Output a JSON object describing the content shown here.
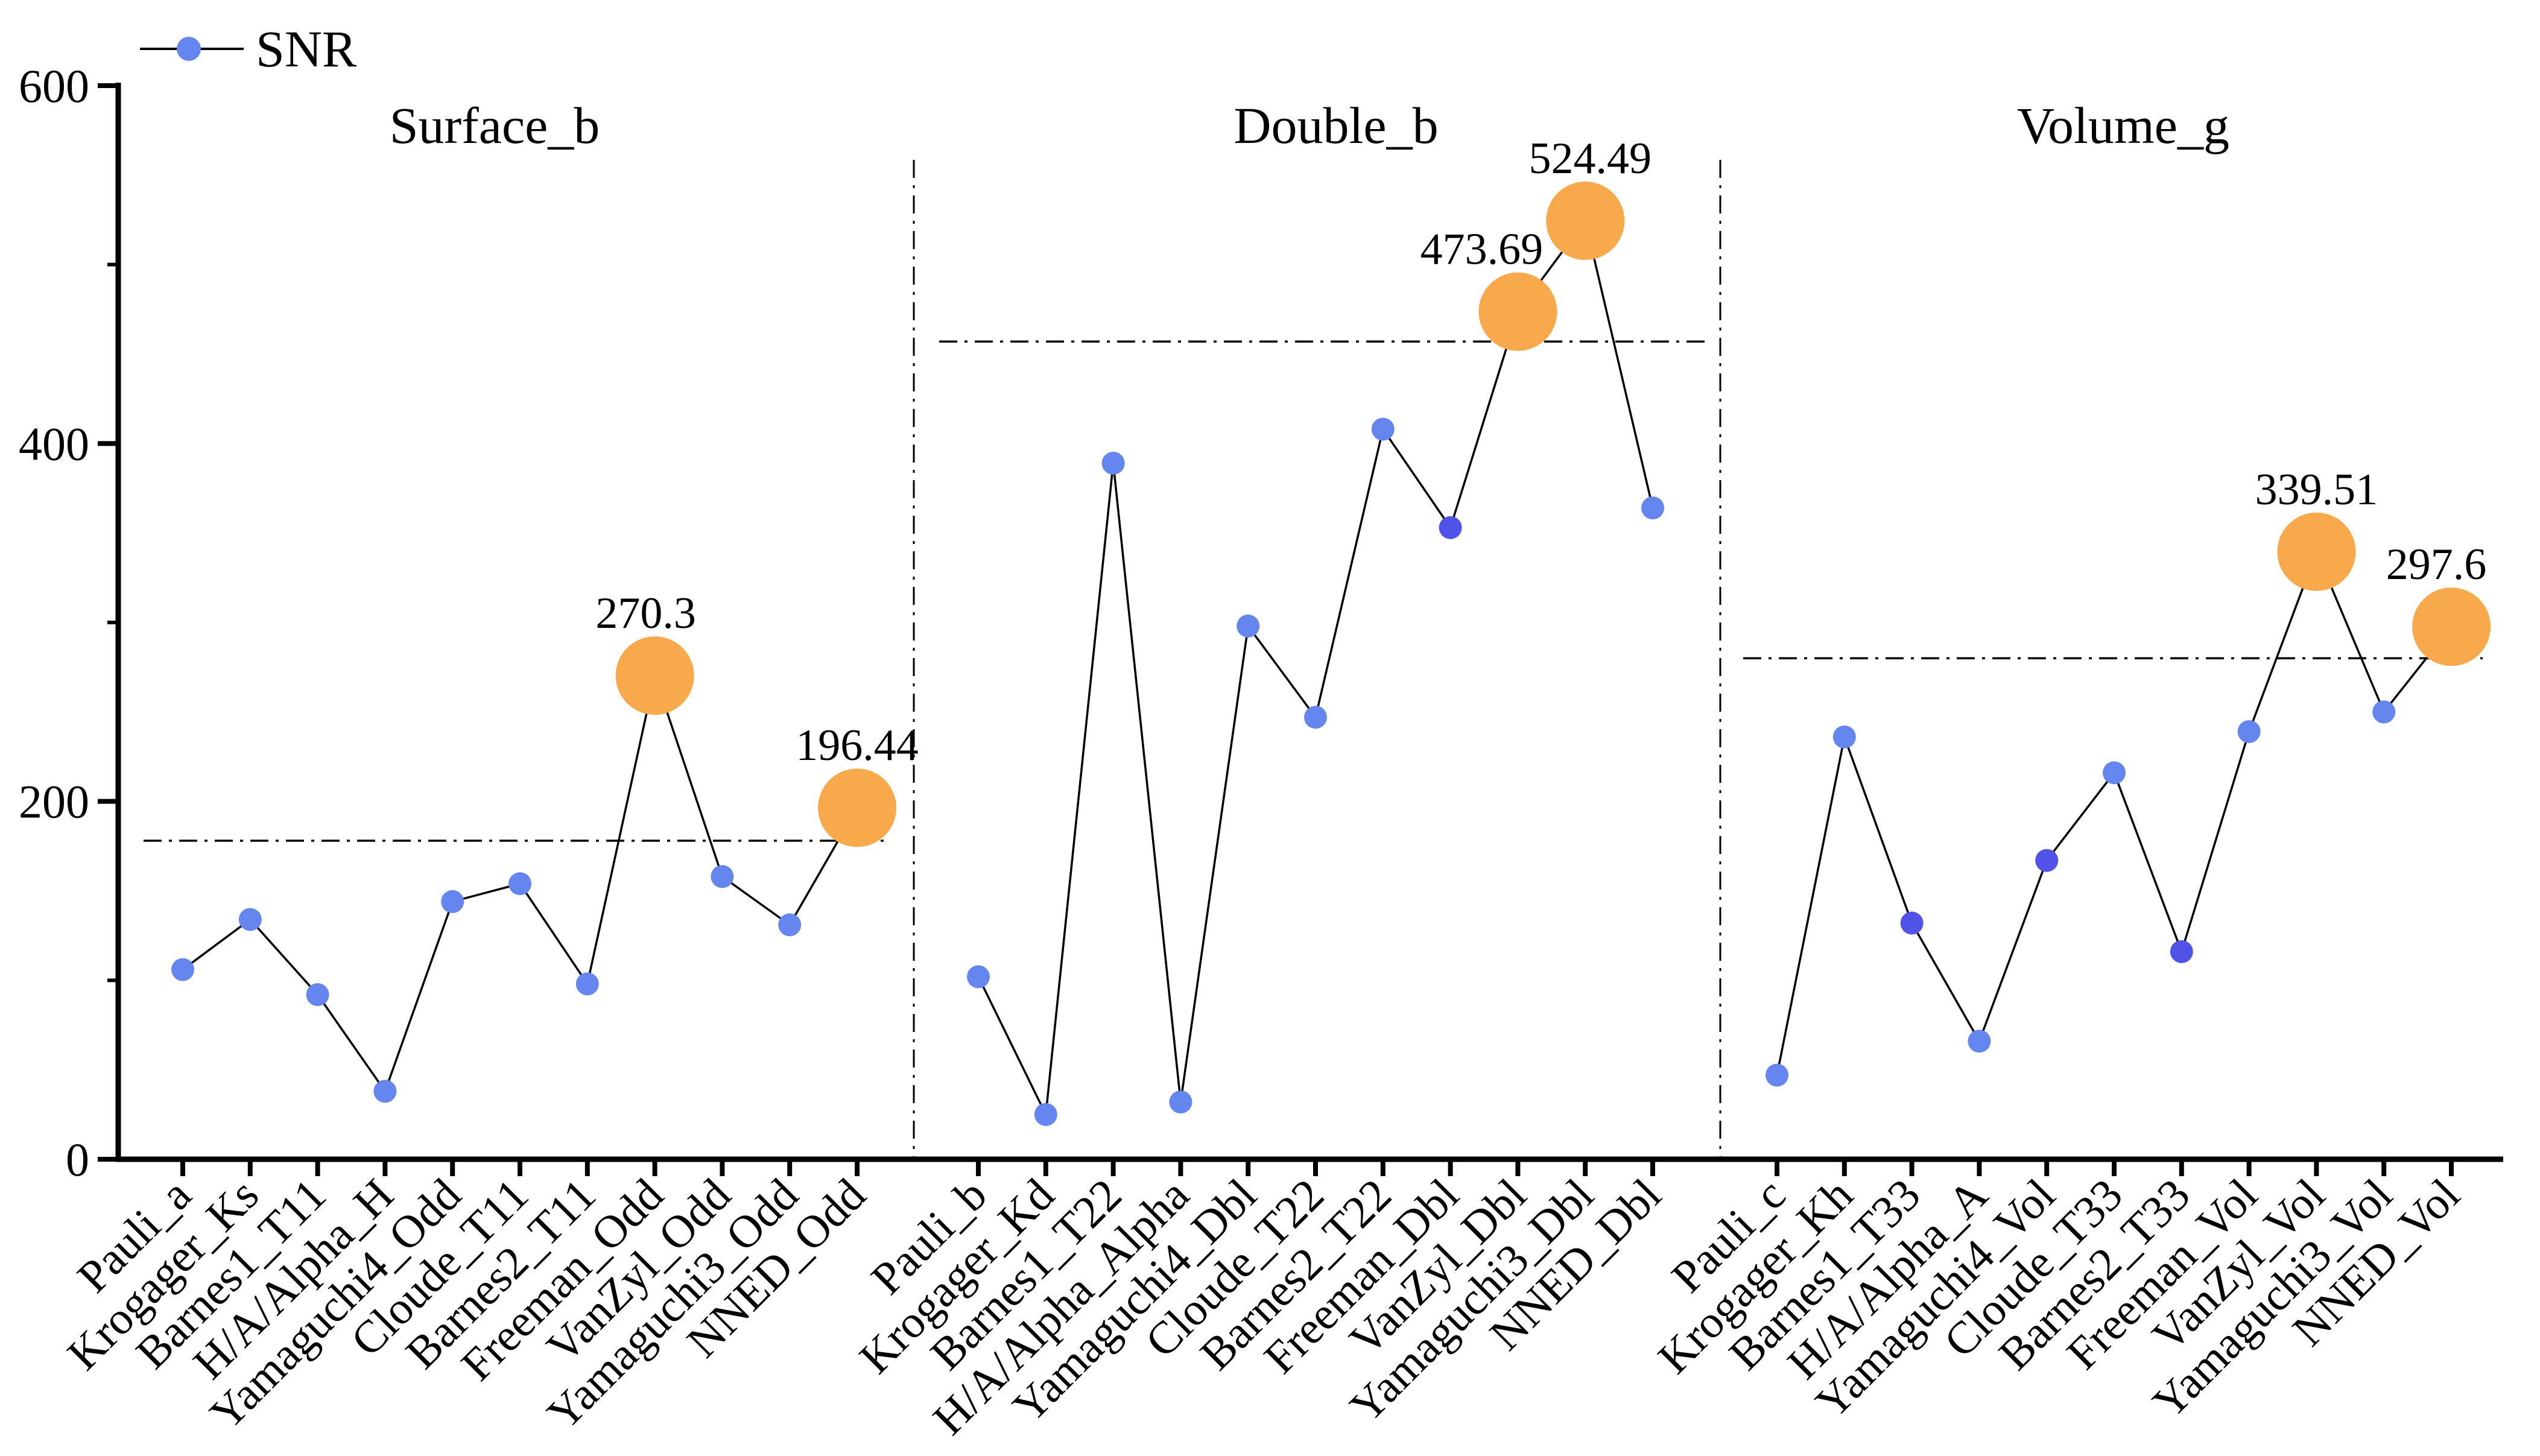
{
  "page": {
    "background": "#ffffff"
  },
  "legend": {
    "label": "SNR"
  },
  "colors": {
    "point_blue": "#6486ee",
    "point_blue_dark": "#5153e8",
    "highlight_orange": "#f8a94c",
    "line_black": "#000000",
    "background": "#ffffff"
  },
  "chart_data": {
    "type": "line",
    "series_name": "SNR",
    "marker": "circle",
    "grid": false,
    "legend_position": "top-left",
    "ylim": [
      0,
      600
    ],
    "yticks_major": [
      0,
      200,
      400,
      600
    ],
    "yticks_minor": [
      100,
      300,
      500
    ],
    "panels": [
      {
        "title": "Surface_b",
        "reference_line": 178,
        "categories": [
          "Pauli_a",
          "Krogager_Ks",
          "Barnes1_T11",
          "H/A/Alpha_H",
          "Yamaguchi4_Odd",
          "Cloude_T11",
          "Barnes2_T11",
          "Freeman_Odd",
          "VanZyl_Odd",
          "Yamaguchi3_Odd",
          "NNED_Odd"
        ],
        "values": [
          106,
          134,
          92,
          38,
          144,
          154,
          98,
          270.3,
          158,
          131,
          196.44
        ],
        "dark_point_indices": [],
        "highlighted": [
          {
            "index": 7,
            "label": "270.3"
          },
          {
            "index": 10,
            "label": "196.44"
          }
        ]
      },
      {
        "title": "Double_b",
        "reference_line": 457,
        "categories": [
          "Pauli_b",
          "Krogager_Kd",
          "Barnes1_T22",
          "H/A/Alpha_Alpha",
          "Yamaguchi4_Dbl",
          "Cloude_T22",
          "Barnes2_T22",
          "Freeman_Dbl",
          "VanZyl_Dbl",
          "Yamaguchi3_Dbl",
          "NNED_Dbl"
        ],
        "values": [
          102,
          25,
          389,
          32,
          298,
          247,
          408,
          353,
          473.69,
          524.49,
          364
        ],
        "dark_point_indices": [
          7
        ],
        "highlighted": [
          {
            "index": 8,
            "label": "473.69"
          },
          {
            "index": 9,
            "label": "524.49"
          }
        ]
      },
      {
        "title": "Volume_g",
        "reference_line": 280,
        "categories": [
          "Pauli_c",
          "Krogager_Kh",
          "Barnes1_T33",
          "H/A/Alpha_A",
          "Yamaguchi4_Vol",
          "Cloude_T33",
          "Barnes2_T33",
          "Freeman_Vol",
          "VanZyl_Vol",
          "Yamaguchi3_Vol",
          "NNED_Vol"
        ],
        "values": [
          47,
          236,
          132,
          66,
          167,
          216,
          116,
          239,
          339.51,
          250,
          297.6
        ],
        "dark_point_indices": [
          2,
          4,
          6
        ],
        "highlighted": [
          {
            "index": 8,
            "label": "339.51"
          },
          {
            "index": 10,
            "label": "297.6"
          }
        ]
      }
    ]
  }
}
